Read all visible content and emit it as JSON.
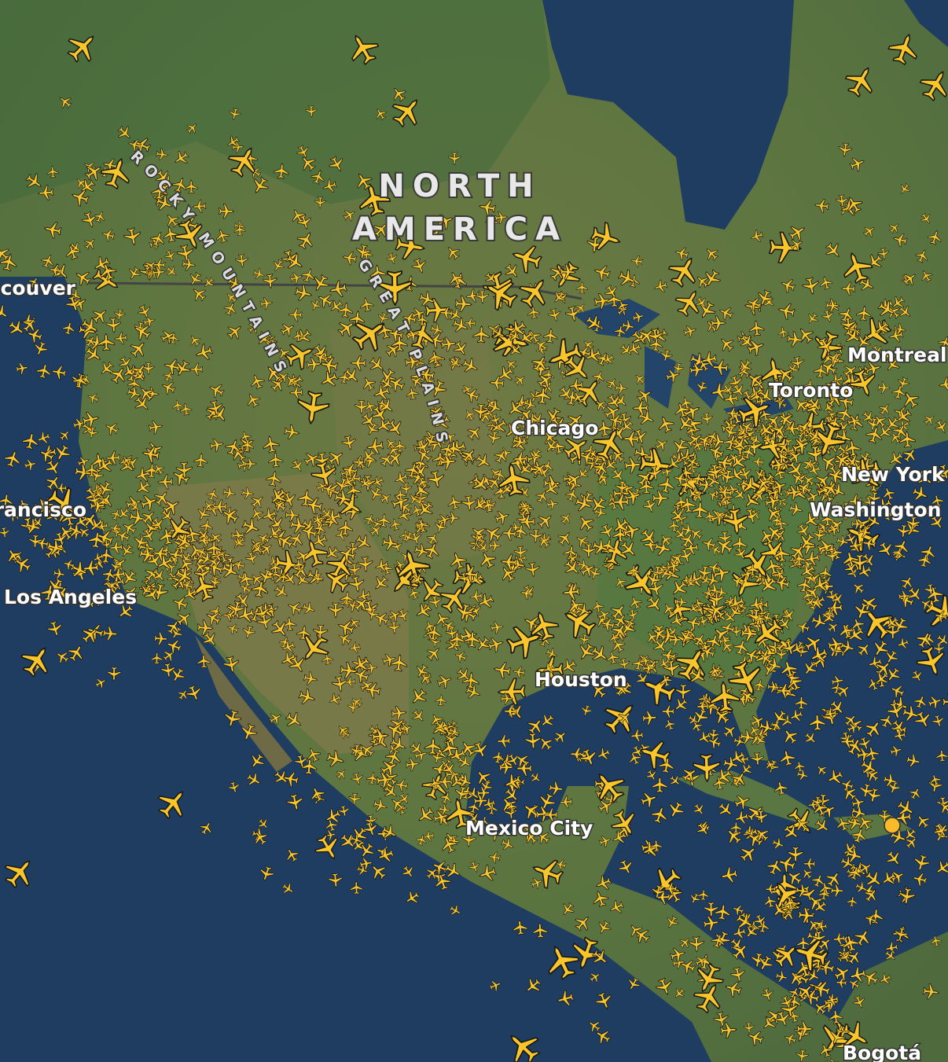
{
  "map": {
    "continent_label": [
      "NORTH",
      "AMERICA"
    ],
    "region_labels": [
      "ROCKY MOUNTAINS",
      "GREAT PLAINS"
    ],
    "city_labels": [
      "Vancouver",
      "Montreal",
      "Toronto",
      "New York",
      "Washington",
      "Chicago",
      "San Francisco",
      "Los Angeles",
      "Houston",
      "Mexico City",
      "Bogotá"
    ]
  }
}
